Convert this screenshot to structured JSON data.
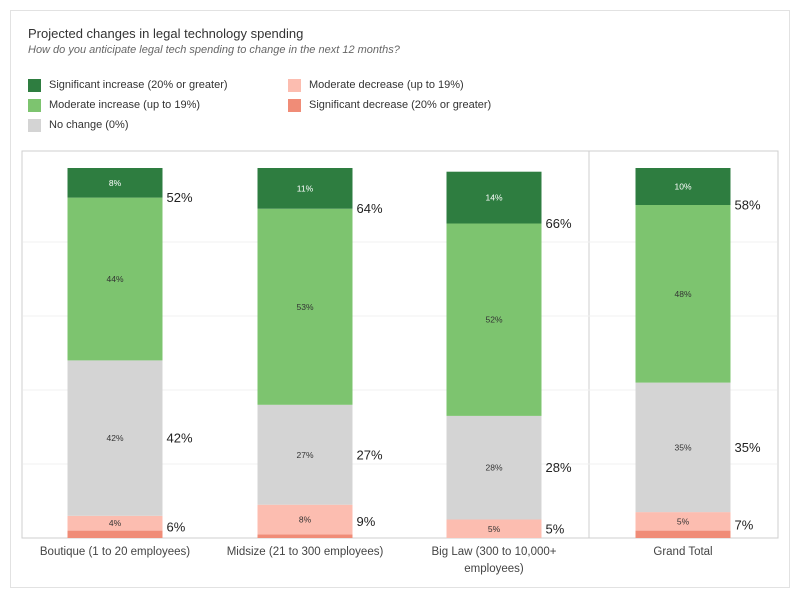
{
  "chart_data": {
    "type": "bar",
    "title": "Projected changes in legal technology spending",
    "subtitle": "How do you anticipate legal tech spending to change in the next 12 months?",
    "categories": [
      [
        "Boutique (1 to 20 employees)"
      ],
      [
        "Midsize (21 to 300 employees)"
      ],
      [
        "Big Law (300 to 10,000+",
        "employees)"
      ],
      [
        "Grand Total"
      ]
    ],
    "series": [
      {
        "name": "Significant decrease (20% or greater)",
        "color": "#f08c77",
        "values": [
          2,
          1,
          0,
          2
        ]
      },
      {
        "name": "Moderate decrease (up to 19%)",
        "color": "#fcbdb0",
        "values": [
          4,
          8,
          5,
          5
        ]
      },
      {
        "name": "No change (0%)",
        "color": "#d4d4d4",
        "values": [
          42,
          27,
          28,
          35
        ]
      },
      {
        "name": "Moderate increase (up to 19%)",
        "color": "#7dc46f",
        "values": [
          44,
          53,
          52,
          48
        ]
      },
      {
        "name": "Significant increase (20% or greater)",
        "color": "#2e7d40",
        "values": [
          8,
          11,
          14,
          10
        ]
      }
    ],
    "segment_labels": [
      [
        "",
        "4%",
        "42%",
        "44%",
        "8%"
      ],
      [
        "",
        "8%",
        "27%",
        "53%",
        "11%"
      ],
      [
        "",
        "5%",
        "28%",
        "52%",
        "14%"
      ],
      [
        "",
        "5%",
        "35%",
        "48%",
        "10%"
      ]
    ],
    "group_totals": [
      {
        "decrease": "6%",
        "no_change": "42%",
        "increase": "52%"
      },
      {
        "decrease": "9%",
        "no_change": "27%",
        "increase": "64%"
      },
      {
        "decrease": "5%",
        "no_change": "28%",
        "increase": "66%"
      },
      {
        "decrease": "7%",
        "no_change": "35%",
        "increase": "58%"
      }
    ],
    "ylim": [
      0,
      100
    ],
    "grid": true,
    "legend_position": "top-left"
  },
  "legend": [
    {
      "label": "Significant increase (20% or greater)",
      "color": "#2e7d40"
    },
    {
      "label": "Moderate increase (up to 19%)",
      "color": "#7dc46f"
    },
    {
      "label": "No change (0%)",
      "color": "#d4d4d4"
    },
    {
      "label": "Moderate decrease (up to 19%)",
      "color": "#fcbdb0"
    },
    {
      "label": "Significant decrease (20% or greater)",
      "color": "#f08c77"
    }
  ]
}
